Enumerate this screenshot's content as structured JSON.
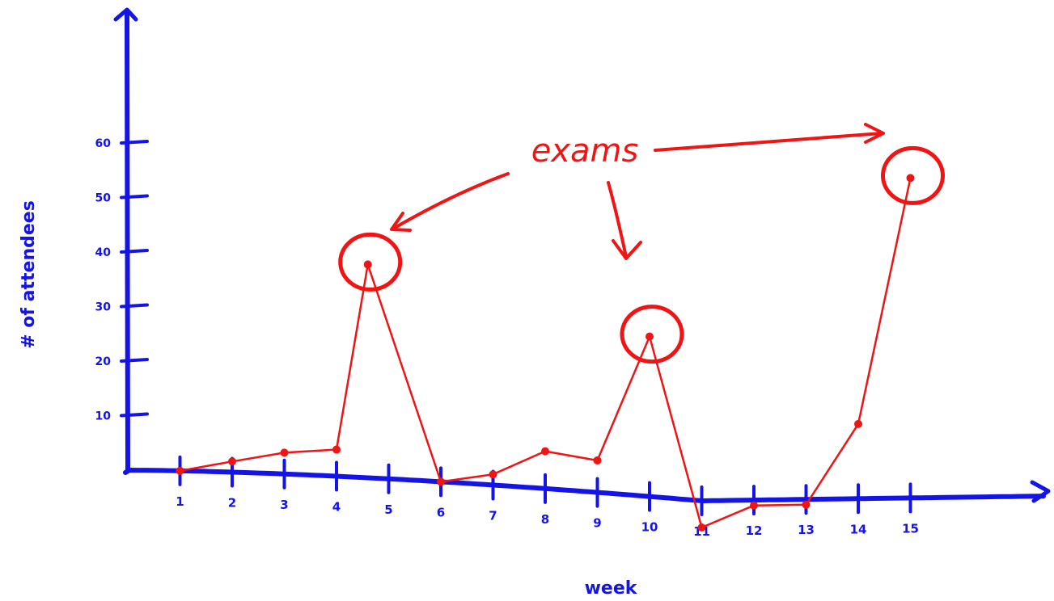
{
  "chart_data": {
    "type": "line",
    "xlabel": "week",
    "ylabel": "# of attendees",
    "xlim": [
      0,
      19
    ],
    "ylim": [
      0,
      70
    ],
    "x_ticks": [
      1,
      2,
      3,
      4,
      5,
      6,
      7,
      8,
      9,
      10,
      11,
      12,
      13,
      14,
      15
    ],
    "y_ticks": [
      10,
      20,
      30,
      40,
      50,
      60
    ],
    "series": [
      {
        "points": [
          {
            "x": 1,
            "y": 0
          },
          {
            "x": 2,
            "y": 2
          },
          {
            "x": 3,
            "y": 4
          },
          {
            "x": 4,
            "y": 5
          },
          {
            "x": 4.6,
            "y": 40
          },
          {
            "x": 6,
            "y": 0
          },
          {
            "x": 7,
            "y": 2
          },
          {
            "x": 8,
            "y": 7
          },
          {
            "x": 9,
            "y": 6
          },
          {
            "x": 10,
            "y": 30
          },
          {
            "x": 11,
            "y": -5
          },
          {
            "x": 12,
            "y": -1
          },
          {
            "x": 13,
            "y": -1
          },
          {
            "x": 14,
            "y": 14
          },
          {
            "x": 15,
            "y": 60
          }
        ]
      }
    ],
    "annotation": {
      "text": "exams",
      "targets": [
        4.6,
        10,
        15
      ]
    },
    "colors": {
      "axes": "#1414e6",
      "data": "#f01414"
    },
    "grid": false
  }
}
